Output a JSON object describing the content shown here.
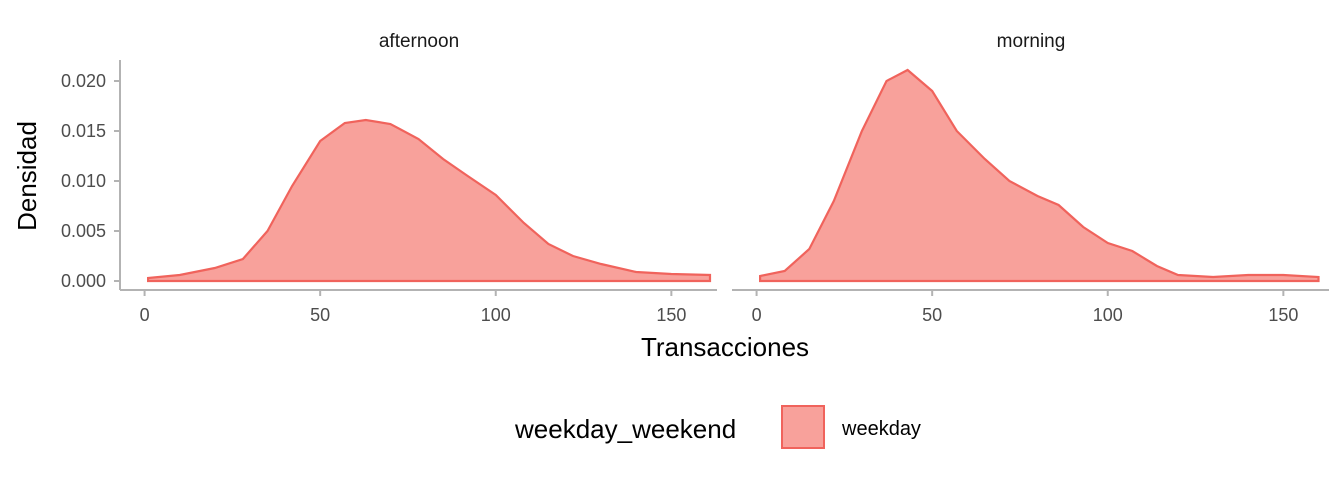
{
  "chart_data": {
    "type": "area",
    "xlabel": "Transacciones",
    "ylabel": "Densidad",
    "xlim": [
      -7,
      163
    ],
    "ylim": [
      -0.0009,
      0.0221
    ],
    "x_ticks": [
      0,
      50,
      100,
      150
    ],
    "y_ticks": [
      0.0,
      0.005,
      0.01,
      0.015,
      0.02
    ],
    "y_tick_labels": [
      "0.000",
      "0.005",
      "0.010",
      "0.015",
      "0.020"
    ],
    "grid": false,
    "legend": {
      "title": "weekday_weekend",
      "placement": "bottom",
      "entries": [
        {
          "label": "weekday"
        }
      ]
    },
    "colors": {
      "fill": "#f8a19b",
      "stroke": "#f0635c",
      "axis": "#b3b3b3"
    },
    "facets": [
      {
        "label": "afternoon",
        "series": [
          {
            "name": "weekday",
            "x": [
              1,
              10,
              20,
              28,
              35,
              42,
              50,
              57,
              63,
              70,
              78,
              85,
              92,
              100,
              108,
              115,
              122,
              130,
              140,
              150,
              161
            ],
            "y": [
              0.0003,
              0.0006,
              0.0013,
              0.0022,
              0.005,
              0.0095,
              0.014,
              0.0158,
              0.0161,
              0.0157,
              0.0142,
              0.0122,
              0.0105,
              0.0086,
              0.0058,
              0.0037,
              0.0025,
              0.0017,
              0.0009,
              0.0007,
              0.0006
            ]
          }
        ]
      },
      {
        "label": "morning",
        "series": [
          {
            "name": "weekday",
            "x": [
              1,
              8,
              15,
              22,
              30,
              37,
              43,
              50,
              57,
              65,
              72,
              80,
              86,
              93,
              100,
              107,
              114,
              120,
              130,
              140,
              150,
              160
            ],
            "y": [
              0.0005,
              0.001,
              0.0032,
              0.008,
              0.015,
              0.02,
              0.0211,
              0.019,
              0.015,
              0.0122,
              0.01,
              0.0085,
              0.0076,
              0.0054,
              0.0038,
              0.003,
              0.0015,
              0.0006,
              0.0004,
              0.0006,
              0.0006,
              0.0004
            ]
          }
        ]
      }
    ]
  }
}
